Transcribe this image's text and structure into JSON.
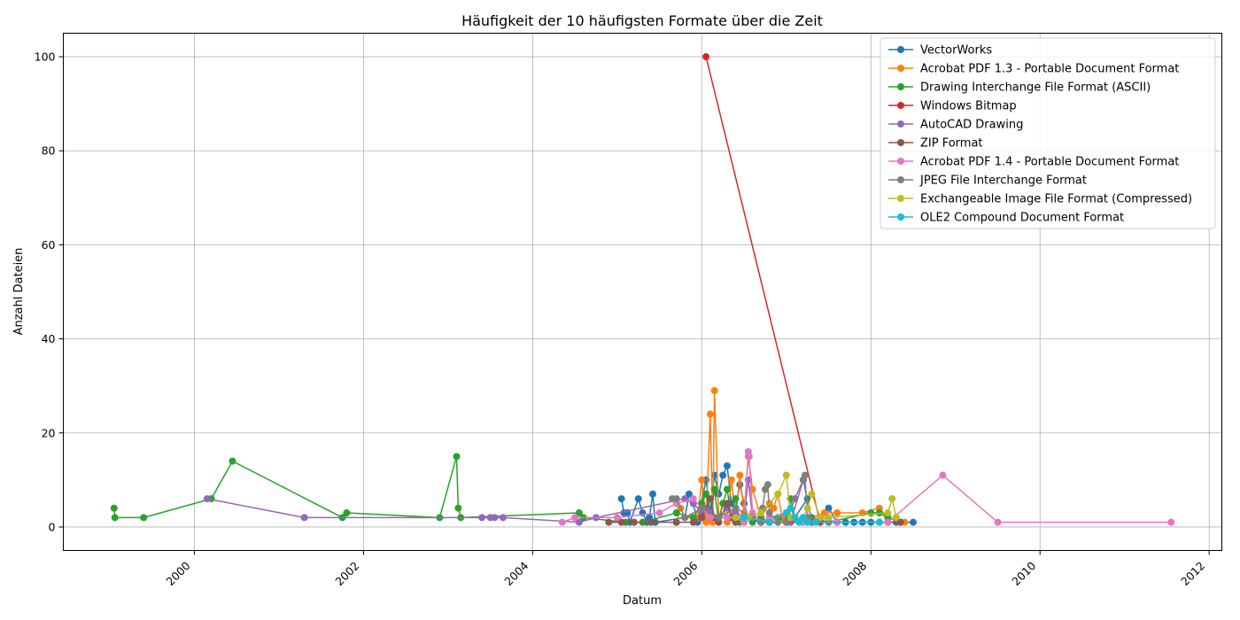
{
  "chart_data": {
    "type": "line",
    "title": "Häufigkeit der 10 häufigsten Formate über die Zeit",
    "xlabel": "Datum",
    "ylabel": "Anzahl Dateien",
    "x_is_date": true,
    "xlim": [
      1998.45,
      2012.15
    ],
    "ylim": [
      -5,
      105
    ],
    "xticks": [
      2000,
      2002,
      2004,
      2006,
      2008,
      2010,
      2012
    ],
    "yticks": [
      0,
      20,
      40,
      60,
      80,
      100
    ],
    "grid": true,
    "legend_position": "top-right",
    "series": [
      {
        "name": "VectorWorks",
        "color": "#1f77b4",
        "points": [
          [
            2005.05,
            6
          ],
          [
            2005.08,
            3
          ],
          [
            2005.12,
            3
          ],
          [
            2005.15,
            1
          ],
          [
            2005.25,
            6
          ],
          [
            2005.3,
            3
          ],
          [
            2005.35,
            1
          ],
          [
            2005.38,
            2
          ],
          [
            2005.42,
            7
          ],
          [
            2005.45,
            1
          ],
          [
            2005.8,
            2
          ],
          [
            2005.85,
            7
          ],
          [
            2005.9,
            5
          ],
          [
            2005.95,
            1
          ],
          [
            2006.05,
            10
          ],
          [
            2006.1,
            3
          ],
          [
            2006.15,
            11
          ],
          [
            2006.2,
            7
          ],
          [
            2006.25,
            11
          ],
          [
            2006.3,
            13
          ],
          [
            2006.35,
            5
          ],
          [
            2006.4,
            4
          ],
          [
            2006.45,
            9
          ],
          [
            2006.5,
            5
          ],
          [
            2006.55,
            2
          ],
          [
            2006.7,
            1
          ],
          [
            2006.8,
            1
          ],
          [
            2006.9,
            2
          ],
          [
            2007.0,
            2
          ],
          [
            2007.1,
            2
          ],
          [
            2007.25,
            6
          ],
          [
            2007.3,
            1
          ],
          [
            2007.4,
            2
          ],
          [
            2007.5,
            4
          ],
          [
            2007.6,
            1
          ],
          [
            2007.7,
            1
          ],
          [
            2007.8,
            1
          ],
          [
            2007.9,
            1
          ],
          [
            2008.0,
            1
          ],
          [
            2008.1,
            1
          ],
          [
            2008.2,
            1
          ],
          [
            2008.3,
            1
          ],
          [
            2008.5,
            1
          ]
        ]
      },
      {
        "name": "Acrobat PDF 1.3 - Portable Document Format",
        "color": "#ff7f0e",
        "points": [
          [
            2005.7,
            1
          ],
          [
            2005.75,
            4
          ],
          [
            2005.8,
            2
          ],
          [
            2005.95,
            2
          ],
          [
            2006.0,
            10
          ],
          [
            2006.05,
            1
          ],
          [
            2006.1,
            24
          ],
          [
            2006.13,
            1
          ],
          [
            2006.15,
            29
          ],
          [
            2006.2,
            2
          ],
          [
            2006.25,
            5
          ],
          [
            2006.3,
            1
          ],
          [
            2006.35,
            10
          ],
          [
            2006.4,
            2
          ],
          [
            2006.45,
            11
          ],
          [
            2006.5,
            3
          ],
          [
            2006.55,
            15
          ],
          [
            2006.6,
            8
          ],
          [
            2006.7,
            2
          ],
          [
            2006.8,
            5
          ],
          [
            2006.85,
            4
          ],
          [
            2006.9,
            7
          ],
          [
            2006.95,
            2
          ],
          [
            2007.05,
            1
          ],
          [
            2007.2,
            2
          ],
          [
            2007.3,
            2
          ],
          [
            2007.45,
            3
          ],
          [
            2007.6,
            3
          ],
          [
            2007.9,
            3
          ],
          [
            2008.1,
            4
          ],
          [
            2008.2,
            2
          ],
          [
            2008.35,
            1
          ],
          [
            2008.4,
            1
          ]
        ]
      },
      {
        "name": "Drawing Interchange File Format (ASCII)",
        "color": "#2ca02c",
        "points": [
          [
            1999.05,
            4
          ],
          [
            1999.06,
            2
          ],
          [
            1999.4,
            2
          ],
          [
            2000.2,
            6
          ],
          [
            2000.45,
            14
          ],
          [
            2001.75,
            2
          ],
          [
            2001.8,
            3
          ],
          [
            2002.9,
            2
          ],
          [
            2003.1,
            15
          ],
          [
            2003.12,
            4
          ],
          [
            2003.15,
            2
          ],
          [
            2004.55,
            3
          ],
          [
            2004.6,
            2
          ],
          [
            2005.1,
            1
          ],
          [
            2005.3,
            1
          ],
          [
            2005.7,
            3
          ],
          [
            2005.9,
            2
          ],
          [
            2006.0,
            5
          ],
          [
            2006.05,
            7
          ],
          [
            2006.1,
            2
          ],
          [
            2006.15,
            8
          ],
          [
            2006.2,
            1
          ],
          [
            2006.25,
            5
          ],
          [
            2006.3,
            8
          ],
          [
            2006.35,
            2
          ],
          [
            2006.4,
            6
          ],
          [
            2006.45,
            1
          ],
          [
            2006.5,
            2
          ],
          [
            2006.6,
            1
          ],
          [
            2006.7,
            2
          ],
          [
            2006.8,
            1
          ],
          [
            2006.9,
            2
          ],
          [
            2007.0,
            1
          ],
          [
            2007.05,
            6
          ],
          [
            2007.1,
            2
          ],
          [
            2007.3,
            2
          ],
          [
            2007.5,
            1
          ],
          [
            2008.0,
            3
          ],
          [
            2008.1,
            3
          ],
          [
            2008.2,
            2
          ]
        ]
      },
      {
        "name": "Windows Bitmap",
        "color": "#d62728",
        "points": [
          [
            2006.05,
            100
          ],
          [
            2007.4,
            1
          ]
        ]
      },
      {
        "name": "AutoCAD Drawing",
        "color": "#9467bd",
        "points": [
          [
            2000.15,
            6
          ],
          [
            2001.3,
            2
          ],
          [
            2003.4,
            2
          ],
          [
            2003.5,
            2
          ],
          [
            2003.55,
            2
          ],
          [
            2003.65,
            2
          ],
          [
            2004.55,
            1
          ],
          [
            2004.75,
            2
          ],
          [
            2005.8,
            6
          ],
          [
            2005.9,
            5
          ],
          [
            2006.0,
            3
          ],
          [
            2006.05,
            4
          ],
          [
            2006.1,
            3
          ],
          [
            2006.2,
            2
          ],
          [
            2006.3,
            4
          ],
          [
            2006.4,
            3
          ],
          [
            2006.5,
            2
          ],
          [
            2006.55,
            10
          ],
          [
            2006.6,
            2
          ],
          [
            2006.7,
            1
          ],
          [
            2006.8,
            1
          ],
          [
            2007.05,
            1
          ],
          [
            2007.2,
            10
          ],
          [
            2007.3,
            1
          ],
          [
            2007.6,
            1
          ],
          [
            2008.2,
            1
          ]
        ]
      },
      {
        "name": "ZIP Format",
        "color": "#8c564b",
        "points": [
          [
            2004.9,
            1
          ],
          [
            2005.05,
            1
          ],
          [
            2005.2,
            1
          ],
          [
            2005.4,
            1
          ],
          [
            2005.7,
            1
          ],
          [
            2005.9,
            1
          ],
          [
            2006.0,
            2
          ],
          [
            2006.1,
            6
          ],
          [
            2006.15,
            2
          ],
          [
            2006.2,
            1
          ],
          [
            2006.3,
            5
          ],
          [
            2006.35,
            2
          ],
          [
            2006.4,
            1
          ],
          [
            2006.5,
            2
          ],
          [
            2006.7,
            1
          ],
          [
            2006.8,
            1
          ],
          [
            2007.0,
            1
          ],
          [
            2007.3,
            1
          ],
          [
            2008.35,
            1
          ]
        ]
      },
      {
        "name": "Acrobat PDF 1.4 - Portable Document Format",
        "color": "#e377c2",
        "points": [
          [
            2004.35,
            1
          ],
          [
            2004.5,
            2
          ],
          [
            2005.0,
            2
          ],
          [
            2005.5,
            3
          ],
          [
            2005.7,
            5
          ],
          [
            2005.9,
            6
          ],
          [
            2006.0,
            4
          ],
          [
            2006.1,
            2
          ],
          [
            2006.3,
            2
          ],
          [
            2006.4,
            2
          ],
          [
            2006.5,
            1
          ],
          [
            2006.55,
            16
          ],
          [
            2006.56,
            15
          ],
          [
            2006.6,
            3
          ],
          [
            2006.7,
            1
          ],
          [
            2006.8,
            2
          ],
          [
            2007.0,
            3
          ],
          [
            2007.2,
            1
          ],
          [
            2007.4,
            2
          ],
          [
            2007.6,
            1
          ],
          [
            2008.2,
            1
          ],
          [
            2008.85,
            11
          ],
          [
            2009.5,
            1
          ],
          [
            2011.55,
            1
          ]
        ]
      },
      {
        "name": "JPEG File Interchange Format",
        "color": "#7f7f7f",
        "points": [
          [
            2005.65,
            6
          ],
          [
            2005.7,
            6
          ],
          [
            2005.8,
            2
          ],
          [
            2006.0,
            4
          ],
          [
            2006.2,
            2
          ],
          [
            2006.4,
            4
          ],
          [
            2006.6,
            2
          ],
          [
            2006.7,
            1
          ],
          [
            2006.72,
            4
          ],
          [
            2006.75,
            8
          ],
          [
            2006.78,
            9
          ],
          [
            2006.8,
            3
          ],
          [
            2006.9,
            1
          ],
          [
            2007.0,
            1
          ],
          [
            2007.1,
            6
          ],
          [
            2007.2,
            10
          ],
          [
            2007.22,
            11
          ],
          [
            2007.25,
            2
          ],
          [
            2007.3,
            1
          ],
          [
            2007.5,
            1
          ]
        ]
      },
      {
        "name": "Exchangeable Image File Format (Compressed)",
        "color": "#bcbd22",
        "points": [
          [
            2006.4,
            2
          ],
          [
            2006.55,
            2
          ],
          [
            2006.7,
            3
          ],
          [
            2006.9,
            7
          ],
          [
            2007.0,
            11
          ],
          [
            2007.05,
            2
          ],
          [
            2007.2,
            2
          ],
          [
            2007.25,
            4
          ],
          [
            2007.3,
            7
          ],
          [
            2007.4,
            2
          ],
          [
            2007.5,
            2
          ],
          [
            2008.2,
            3
          ],
          [
            2008.25,
            6
          ],
          [
            2008.3,
            2
          ]
        ]
      },
      {
        "name": "OLE2 Compound Document Format",
        "color": "#17becf",
        "points": [
          [
            2006.5,
            2
          ],
          [
            2006.8,
            1
          ],
          [
            2007.0,
            3
          ],
          [
            2007.05,
            4
          ],
          [
            2007.1,
            2
          ],
          [
            2007.15,
            1
          ],
          [
            2007.2,
            2
          ],
          [
            2007.25,
            1
          ],
          [
            2007.35,
            1
          ],
          [
            2008.1,
            1
          ]
        ]
      }
    ]
  }
}
